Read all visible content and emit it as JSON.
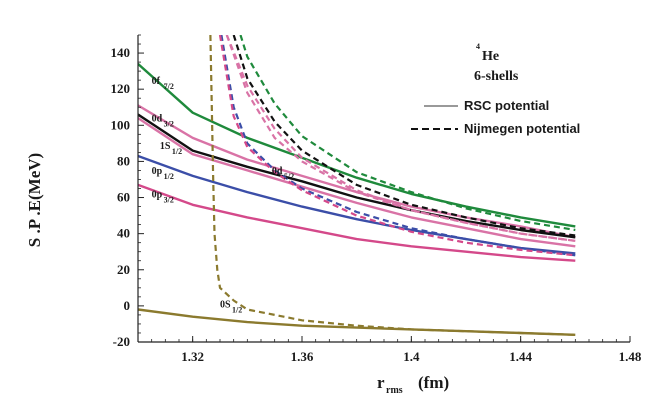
{
  "chart_data": {
    "type": "line",
    "title": "",
    "nucleus": {
      "mass_number": "4",
      "symbol": "He",
      "shells": "6-shells"
    },
    "xlabel": {
      "main": "r",
      "sub": "rms",
      "unit": "(fm)"
    },
    "ylabel": "S .P .E(MeV)",
    "xlim": [
      1.3,
      1.48
    ],
    "ylim": [
      -20,
      150
    ],
    "xticks": [
      {
        "value": 1.32,
        "label": "1.32"
      },
      {
        "value": 1.36,
        "label": "1.36"
      },
      {
        "value": 1.4,
        "label": "1.4"
      },
      {
        "value": 1.44,
        "label": "1.44"
      },
      {
        "value": 1.48,
        "label": "1.48"
      }
    ],
    "yticks": [
      {
        "value": -20,
        "label": "-20"
      },
      {
        "value": 0,
        "label": "0"
      },
      {
        "value": 20,
        "label": "20"
      },
      {
        "value": 40,
        "label": "40"
      },
      {
        "value": 60,
        "label": "60"
      },
      {
        "value": 80,
        "label": "80"
      },
      {
        "value": 100,
        "label": "100"
      },
      {
        "value": 120,
        "label": "120"
      },
      {
        "value": 140,
        "label": "140"
      }
    ],
    "legend": [
      {
        "label": "RSC potential",
        "style": "solid"
      },
      {
        "label": "Nijmegen potential",
        "style": "dashed"
      }
    ],
    "series": [
      {
        "name": "0f7/2 RSC",
        "color": "#1f8a3c",
        "style": "solid",
        "points": [
          [
            1.3,
            134
          ],
          [
            1.32,
            107
          ],
          [
            1.34,
            93
          ],
          [
            1.36,
            82
          ],
          [
            1.38,
            71
          ],
          [
            1.4,
            62
          ],
          [
            1.42,
            55
          ],
          [
            1.44,
            49
          ],
          [
            1.46,
            44
          ]
        ]
      },
      {
        "name": "0d3/2 RSC",
        "color": "#d973a6",
        "style": "solid",
        "points": [
          [
            1.3,
            111
          ],
          [
            1.32,
            93
          ],
          [
            1.34,
            81
          ],
          [
            1.36,
            72
          ],
          [
            1.38,
            63
          ],
          [
            1.4,
            55
          ],
          [
            1.42,
            49
          ],
          [
            1.44,
            44
          ],
          [
            1.46,
            38
          ]
        ]
      },
      {
        "name": "1s1/2 RSC",
        "color": "#111111",
        "style": "solid",
        "points": [
          [
            1.3,
            106
          ],
          [
            1.32,
            86
          ],
          [
            1.34,
            77
          ],
          [
            1.36,
            69
          ],
          [
            1.38,
            60
          ],
          [
            1.4,
            53
          ],
          [
            1.42,
            47
          ],
          [
            1.44,
            42
          ],
          [
            1.46,
            38
          ]
        ]
      },
      {
        "name": "0d5/2 RSC",
        "color": "#d973a6",
        "style": "solid",
        "points": [
          [
            1.3,
            104
          ],
          [
            1.32,
            84
          ],
          [
            1.34,
            75
          ],
          [
            1.36,
            66
          ],
          [
            1.38,
            57
          ],
          [
            1.4,
            49
          ],
          [
            1.42,
            43
          ],
          [
            1.44,
            37
          ],
          [
            1.46,
            33
          ]
        ]
      },
      {
        "name": "0p1/2 RSC",
        "color": "#3b4ea8",
        "style": "solid",
        "points": [
          [
            1.3,
            83
          ],
          [
            1.32,
            72
          ],
          [
            1.34,
            63
          ],
          [
            1.36,
            55
          ],
          [
            1.38,
            48
          ],
          [
            1.4,
            42
          ],
          [
            1.42,
            37
          ],
          [
            1.44,
            32
          ],
          [
            1.46,
            29
          ]
        ]
      },
      {
        "name": "0p3/2 RSC",
        "color": "#d4498a",
        "style": "solid",
        "points": [
          [
            1.3,
            67
          ],
          [
            1.32,
            56
          ],
          [
            1.34,
            49
          ],
          [
            1.36,
            43
          ],
          [
            1.38,
            37
          ],
          [
            1.4,
            33
          ],
          [
            1.42,
            30
          ],
          [
            1.44,
            27
          ],
          [
            1.46,
            25
          ]
        ]
      },
      {
        "name": "0s1/2 RSC",
        "color": "#8b7a2e",
        "style": "solid",
        "points": [
          [
            1.3,
            -2
          ],
          [
            1.32,
            -6
          ],
          [
            1.34,
            -9
          ],
          [
            1.36,
            -11
          ],
          [
            1.38,
            -12
          ],
          [
            1.4,
            -13
          ],
          [
            1.42,
            -14
          ],
          [
            1.44,
            -15
          ],
          [
            1.46,
            -16
          ]
        ]
      },
      {
        "name": "0f7/2 Nijmegen",
        "color": "#1f8a3c",
        "style": "dashed",
        "points": [
          [
            1.3375,
            150
          ],
          [
            1.34,
            138
          ],
          [
            1.35,
            112
          ],
          [
            1.36,
            94
          ],
          [
            1.38,
            74
          ],
          [
            1.4,
            63
          ],
          [
            1.42,
            54
          ],
          [
            1.44,
            47
          ],
          [
            1.46,
            42
          ]
        ]
      },
      {
        "name": "0d3/2 Nijmegen",
        "color": "#d973a6",
        "style": "dashed",
        "points": [
          [
            1.3325,
            150
          ],
          [
            1.34,
            118
          ],
          [
            1.35,
            93
          ],
          [
            1.36,
            80
          ],
          [
            1.38,
            63
          ],
          [
            1.4,
            53
          ],
          [
            1.42,
            46
          ],
          [
            1.44,
            40
          ],
          [
            1.46,
            36
          ]
        ]
      },
      {
        "name": "1s1/2 Nijmegen",
        "color": "#111111",
        "style": "dashed",
        "points": [
          [
            1.335,
            150
          ],
          [
            1.34,
            126
          ],
          [
            1.35,
            102
          ],
          [
            1.36,
            86
          ],
          [
            1.38,
            67
          ],
          [
            1.4,
            56
          ],
          [
            1.42,
            49
          ],
          [
            1.44,
            43
          ],
          [
            1.46,
            39
          ]
        ]
      },
      {
        "name": "0d5/2 Nijmegen",
        "color": "#d973a6",
        "style": "dashed",
        "points": [
          [
            1.3325,
            150
          ],
          [
            1.34,
            122
          ],
          [
            1.35,
            98
          ],
          [
            1.36,
            82
          ],
          [
            1.38,
            64
          ],
          [
            1.4,
            53
          ],
          [
            1.42,
            46
          ],
          [
            1.44,
            40
          ],
          [
            1.46,
            36
          ]
        ]
      },
      {
        "name": "0p1/2 Nijmegen",
        "color": "#3b4ea8",
        "style": "dashed",
        "points": [
          [
            1.3305,
            150
          ],
          [
            1.335,
            110
          ],
          [
            1.34,
            90
          ],
          [
            1.35,
            75
          ],
          [
            1.36,
            65
          ],
          [
            1.38,
            52
          ],
          [
            1.4,
            43
          ],
          [
            1.42,
            37
          ],
          [
            1.44,
            32
          ],
          [
            1.46,
            28
          ]
        ]
      },
      {
        "name": "0p3/2 Nijmegen",
        "color": "#d4498a",
        "style": "dashed",
        "points": [
          [
            1.33,
            150
          ],
          [
            1.335,
            105
          ],
          [
            1.34,
            88
          ],
          [
            1.35,
            74
          ],
          [
            1.36,
            64
          ],
          [
            1.38,
            50
          ],
          [
            1.4,
            41
          ],
          [
            1.42,
            35
          ],
          [
            1.44,
            31
          ],
          [
            1.46,
            28
          ]
        ]
      },
      {
        "name": "0s1/2 Nijmegen",
        "color": "#8b7a2e",
        "style": "dashed",
        "points": [
          [
            1.3265,
            150
          ],
          [
            1.327,
            110
          ],
          [
            1.3275,
            70
          ],
          [
            1.328,
            40
          ],
          [
            1.329,
            20
          ],
          [
            1.33,
            10
          ],
          [
            1.335,
            3
          ],
          [
            1.34,
            -2
          ],
          [
            1.35,
            -5
          ],
          [
            1.36,
            -8
          ],
          [
            1.38,
            -11
          ],
          [
            1.4,
            -13
          ],
          [
            1.42,
            -14
          ],
          [
            1.44,
            -15
          ],
          [
            1.46,
            -16
          ]
        ]
      }
    ],
    "annotations": [
      {
        "main": "0f",
        "sub": "7/2",
        "x": 1.305,
        "y": 123
      },
      {
        "main": "0d",
        "sub": "3/2",
        "x": 1.305,
        "y": 102
      },
      {
        "main": "1S",
        "sub": "1/2",
        "x": 1.308,
        "y": 87
      },
      {
        "main": "0p",
        "sub": "1/2",
        "x": 1.305,
        "y": 73
      },
      {
        "main": "0d",
        "sub": "5/2",
        "x": 1.349,
        "y": 73
      },
      {
        "main": "0p",
        "sub": "3/2",
        "x": 1.305,
        "y": 60
      },
      {
        "main": "0S",
        "sub": "1/2",
        "x": 1.33,
        "y": -1
      }
    ]
  }
}
